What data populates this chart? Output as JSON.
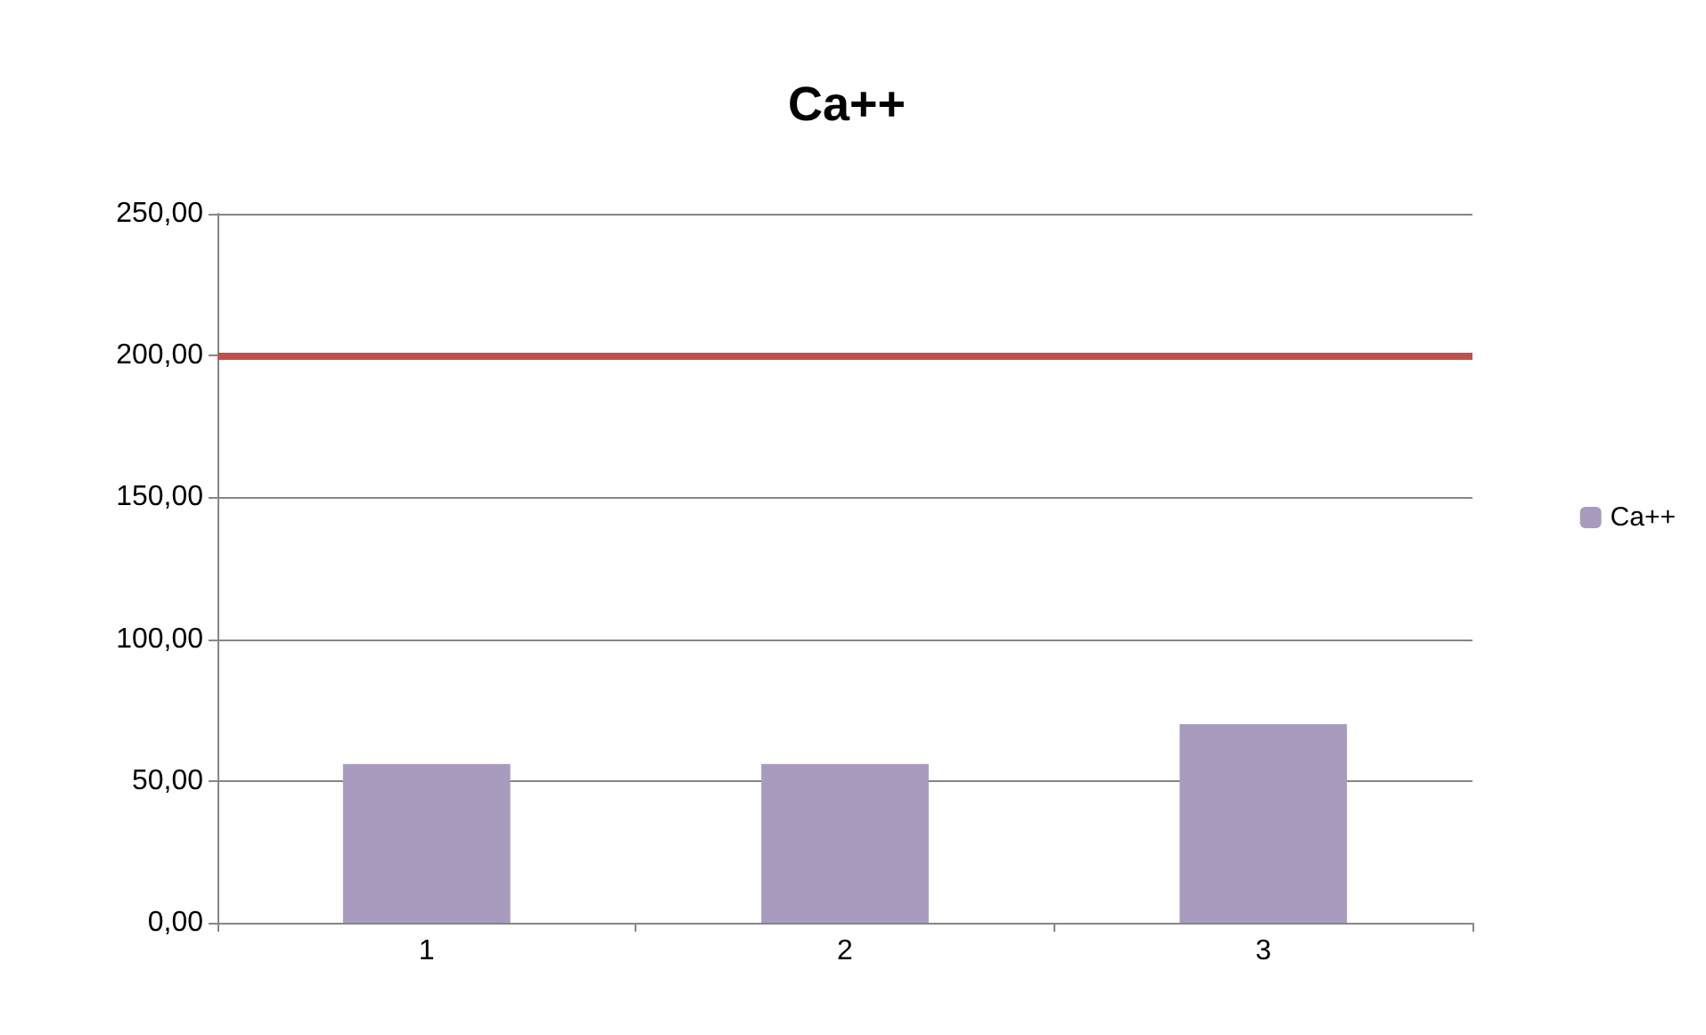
{
  "chart_data": {
    "type": "bar",
    "title": "Ca++",
    "categories": [
      "1",
      "2",
      "3"
    ],
    "series": [
      {
        "name": "Ca++",
        "color": "#a99bbd",
        "values": [
          56,
          56,
          70
        ]
      }
    ],
    "ylim": [
      0,
      250
    ],
    "yticks": [
      {
        "value": 0,
        "label": "0,00"
      },
      {
        "value": 50,
        "label": "50,00"
      },
      {
        "value": 100,
        "label": "100,00"
      },
      {
        "value": 150,
        "label": "150,00"
      },
      {
        "value": 200,
        "label": "200,00"
      },
      {
        "value": 250,
        "label": "250,00"
      }
    ],
    "ref_lines": [
      {
        "axis": "y",
        "value": 200,
        "color": "#c0504d"
      }
    ],
    "grid": "y",
    "legend": "right"
  }
}
